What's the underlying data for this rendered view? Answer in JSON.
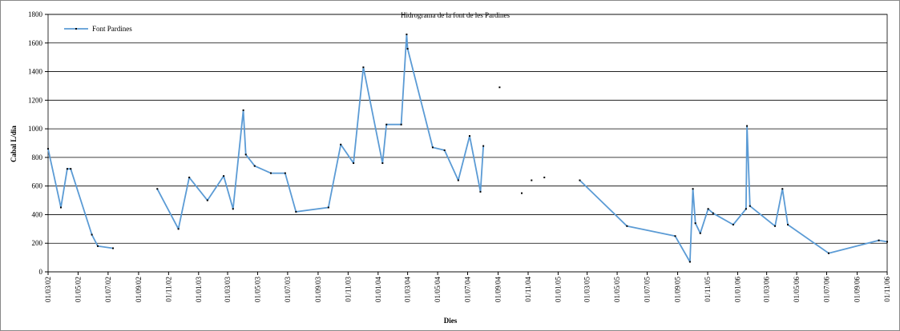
{
  "chart_data": {
    "type": "line",
    "title": "Hidrograma de la font de les Pardines",
    "xlabel": "Dies",
    "ylabel": "Cabal L/dia",
    "legend": "upper left",
    "grid": true,
    "ylim": [
      0,
      1800
    ],
    "yticks": [
      0,
      200,
      400,
      600,
      800,
      1000,
      1200,
      1400,
      1600,
      1800
    ],
    "xlim": [
      "2002-03-01",
      "2006-11-01"
    ],
    "xticks": [
      {
        "value": "2002-03-01",
        "label": "01/03/02"
      },
      {
        "value": "2002-05-01",
        "label": "01/05/02"
      },
      {
        "value": "2002-07-01",
        "label": "01/07/02"
      },
      {
        "value": "2002-09-01",
        "label": "01/09/02"
      },
      {
        "value": "2002-11-01",
        "label": "01/11/02"
      },
      {
        "value": "2003-01-01",
        "label": "01/01/03"
      },
      {
        "value": "2003-03-01",
        "label": "01/03/03"
      },
      {
        "value": "2003-05-01",
        "label": "01/05/03"
      },
      {
        "value": "2003-07-01",
        "label": "01/07/03"
      },
      {
        "value": "2003-09-01",
        "label": "01/09/03"
      },
      {
        "value": "2003-11-01",
        "label": "01/11/03"
      },
      {
        "value": "2004-01-01",
        "label": "01/01/04"
      },
      {
        "value": "2004-03-01",
        "label": "01/03/04"
      },
      {
        "value": "2004-05-01",
        "label": "01/05/04"
      },
      {
        "value": "2004-07-01",
        "label": "01/07/04"
      },
      {
        "value": "2004-09-01",
        "label": "01/09/04"
      },
      {
        "value": "2004-11-01",
        "label": "01/11/04"
      },
      {
        "value": "2005-01-01",
        "label": "01/01/05"
      },
      {
        "value": "2005-03-01",
        "label": "01/03/05"
      },
      {
        "value": "2005-05-01",
        "label": "01/05/05"
      },
      {
        "value": "2005-07-01",
        "label": "01/07/05"
      },
      {
        "value": "2005-09-01",
        "label": "01/09/05"
      },
      {
        "value": "2005-11-01",
        "label": "01/11/05"
      },
      {
        "value": "2006-01-01",
        "label": "01/01/06"
      },
      {
        "value": "2006-03-01",
        "label": "01/03/06"
      },
      {
        "value": "2006-05-01",
        "label": "01/05/06"
      },
      {
        "value": "2006-07-01",
        "label": "01/07/06"
      },
      {
        "value": "2006-09-01",
        "label": "01/09/06"
      },
      {
        "value": "2006-11-01",
        "label": "01/11/06"
      }
    ],
    "x": [
      "2002-03-01",
      "2002-03-27",
      "2002-04-09",
      "2002-04-16",
      "2002-05-29",
      "2002-06-10",
      "2002-07-11",
      "2002-08-15",
      "2002-10-09",
      "2002-11-21",
      "2002-12-13",
      "2003-01-19",
      "2003-02-21",
      "2003-03-12",
      "2003-04-02",
      "2003-04-07",
      "2003-04-25",
      "2003-05-28",
      "2003-06-26",
      "2003-07-18",
      "2003-09-22",
      "2003-10-17",
      "2003-11-12",
      "2003-12-02",
      "2004-01-10",
      "2004-01-18",
      "2004-02-17",
      "2004-02-28",
      "2004-03-01",
      "2004-04-21",
      "2004-05-15",
      "2004-06-12",
      "2004-07-05",
      "2004-07-27",
      "2004-08-02",
      "2004-08-15",
      "2004-09-04",
      "2004-09-25",
      "2004-10-19",
      "2004-10-28",
      "2004-11-08",
      "2004-11-20",
      "2004-12-04",
      "2005-01-10",
      "2005-02-14",
      "2005-05-21",
      "2005-08-27",
      "2005-09-26",
      "2005-10-02",
      "2005-10-07",
      "2005-10-17",
      "2005-11-02",
      "2005-11-12",
      "2005-12-23",
      "2006-01-18",
      "2006-01-20",
      "2006-01-26",
      "2006-03-18",
      "2006-04-02",
      "2006-04-13",
      "2006-07-05",
      "2006-10-15",
      "2006-11-01"
    ],
    "series": [
      {
        "name": "Font Pardines",
        "color": "#5b9bd5",
        "values": [
          860,
          450,
          720,
          720,
          260,
          180,
          165,
          null,
          580,
          300,
          660,
          500,
          670,
          440,
          1130,
          820,
          740,
          690,
          690,
          420,
          450,
          890,
          760,
          1430,
          760,
          1030,
          1030,
          1660,
          1560,
          870,
          850,
          640,
          950,
          560,
          880,
          null,
          1290,
          null,
          550,
          null,
          640,
          null,
          660,
          null,
          640,
          320,
          250,
          70,
          580,
          340,
          270,
          440,
          410,
          330,
          440,
          1020,
          460,
          320,
          580,
          330,
          130,
          220,
          210
        ]
      }
    ]
  }
}
